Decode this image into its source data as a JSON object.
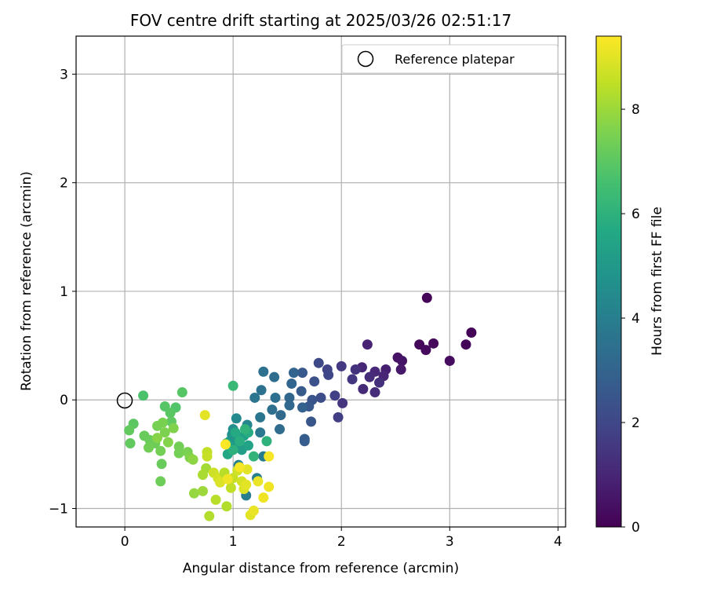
{
  "chart_data": {
    "type": "scatter",
    "title": "FOV centre drift starting at 2025/03/26 02:51:17",
    "xlabel": "Angular distance from reference (arcmin)",
    "ylabel": "Rotation from reference (arcmin)",
    "xlim": [
      -0.45,
      4.07
    ],
    "ylim": [
      -1.17,
      3.35
    ],
    "xticks": [
      0,
      1,
      2,
      3,
      4
    ],
    "yticks": [
      -1,
      0,
      1,
      2,
      3
    ],
    "grid": true,
    "legend": {
      "position": "upper right",
      "entries": [
        "Reference platepar"
      ]
    },
    "reference_point": {
      "x": 0,
      "y": 0,
      "label": "Reference platepar",
      "marker": "open circle"
    },
    "colorbar": {
      "label": "Hours from first FF file",
      "min": 0,
      "max": 9.4,
      "ticks": [
        0,
        2,
        4,
        6,
        8
      ],
      "colormap": "viridis"
    },
    "points": [
      {
        "x": 2.79,
        "y": 0.94,
        "c": 0.1
      },
      {
        "x": 3.2,
        "y": 0.62,
        "c": 0.05
      },
      {
        "x": 3.15,
        "y": 0.51,
        "c": 0.1
      },
      {
        "x": 2.85,
        "y": 0.52,
        "c": 0.2
      },
      {
        "x": 2.72,
        "y": 0.51,
        "c": 0.15
      },
      {
        "x": 2.78,
        "y": 0.46,
        "c": 0.25
      },
      {
        "x": 3.0,
        "y": 0.36,
        "c": 0.3
      },
      {
        "x": 2.52,
        "y": 0.39,
        "c": 0.45
      },
      {
        "x": 2.56,
        "y": 0.36,
        "c": 0.5
      },
      {
        "x": 2.55,
        "y": 0.28,
        "c": 0.6
      },
      {
        "x": 2.24,
        "y": 0.51,
        "c": 0.9
      },
      {
        "x": 2.41,
        "y": 0.28,
        "c": 0.8
      },
      {
        "x": 2.39,
        "y": 0.22,
        "c": 1.0
      },
      {
        "x": 2.31,
        "y": 0.26,
        "c": 1.1
      },
      {
        "x": 2.26,
        "y": 0.21,
        "c": 1.2
      },
      {
        "x": 2.35,
        "y": 0.16,
        "c": 1.3
      },
      {
        "x": 2.31,
        "y": 0.07,
        "c": 1.2
      },
      {
        "x": 2.2,
        "y": 0.1,
        "c": 1.15
      },
      {
        "x": 2.19,
        "y": 0.3,
        "c": 1.0
      },
      {
        "x": 2.13,
        "y": 0.28,
        "c": 1.35
      },
      {
        "x": 2.1,
        "y": 0.19,
        "c": 1.5
      },
      {
        "x": 2.0,
        "y": 0.31,
        "c": 1.6
      },
      {
        "x": 2.01,
        "y": -0.03,
        "c": 1.4
      },
      {
        "x": 1.97,
        "y": -0.16,
        "c": 1.7
      },
      {
        "x": 1.94,
        "y": 0.04,
        "c": 1.8
      },
      {
        "x": 1.87,
        "y": 0.28,
        "c": 1.9
      },
      {
        "x": 1.88,
        "y": 0.23,
        "c": 2.0
      },
      {
        "x": 1.79,
        "y": 0.34,
        "c": 2.1
      },
      {
        "x": 1.81,
        "y": 0.02,
        "c": 2.2
      },
      {
        "x": 1.75,
        "y": 0.17,
        "c": 2.3
      },
      {
        "x": 1.73,
        "y": 0.0,
        "c": 2.4
      },
      {
        "x": 1.72,
        "y": -0.2,
        "c": 2.5
      },
      {
        "x": 1.7,
        "y": -0.06,
        "c": 2.55
      },
      {
        "x": 1.64,
        "y": 0.25,
        "c": 2.6
      },
      {
        "x": 1.63,
        "y": 0.08,
        "c": 2.7
      },
      {
        "x": 1.66,
        "y": -0.36,
        "c": 2.8
      },
      {
        "x": 1.66,
        "y": -0.38,
        "c": 2.75
      },
      {
        "x": 1.64,
        "y": -0.07,
        "c": 2.9
      },
      {
        "x": 1.56,
        "y": 0.25,
        "c": 3.0
      },
      {
        "x": 1.54,
        "y": 0.15,
        "c": 3.05
      },
      {
        "x": 1.52,
        "y": 0.02,
        "c": 3.1
      },
      {
        "x": 1.52,
        "y": -0.05,
        "c": 3.15
      },
      {
        "x": 1.44,
        "y": -0.14,
        "c": 3.2
      },
      {
        "x": 1.43,
        "y": -0.27,
        "c": 3.3
      },
      {
        "x": 1.38,
        "y": 0.21,
        "c": 3.35
      },
      {
        "x": 1.39,
        "y": 0.02,
        "c": 3.4
      },
      {
        "x": 1.36,
        "y": -0.09,
        "c": 3.45
      },
      {
        "x": 1.28,
        "y": 0.26,
        "c": 3.5
      },
      {
        "x": 1.26,
        "y": 0.09,
        "c": 3.55
      },
      {
        "x": 1.25,
        "y": -0.16,
        "c": 3.65
      },
      {
        "x": 1.2,
        "y": 0.02,
        "c": 3.7
      },
      {
        "x": 1.25,
        "y": -0.3,
        "c": 3.8
      },
      {
        "x": 1.28,
        "y": -0.52,
        "c": 3.9
      },
      {
        "x": 1.22,
        "y": -0.72,
        "c": 3.95
      },
      {
        "x": 1.12,
        "y": -0.88,
        "c": 4.0
      },
      {
        "x": 1.05,
        "y": -0.6,
        "c": 4.1
      },
      {
        "x": 1.13,
        "y": -0.23,
        "c": 4.3
      },
      {
        "x": 1.03,
        "y": -0.17,
        "c": 4.4
      },
      {
        "x": 1.0,
        "y": -0.27,
        "c": 4.55
      },
      {
        "x": 0.99,
        "y": -0.32,
        "c": 4.7
      },
      {
        "x": 0.97,
        "y": -0.38,
        "c": 4.85
      },
      {
        "x": 1.04,
        "y": -0.36,
        "c": 5.0
      },
      {
        "x": 1.02,
        "y": -0.43,
        "c": 5.1
      },
      {
        "x": 1.08,
        "y": -0.46,
        "c": 5.2
      },
      {
        "x": 1.1,
        "y": -0.33,
        "c": 5.3
      },
      {
        "x": 1.14,
        "y": -0.42,
        "c": 5.4
      },
      {
        "x": 0.94,
        "y": -0.4,
        "c": 5.5
      },
      {
        "x": 0.95,
        "y": -0.5,
        "c": 5.6
      },
      {
        "x": 1.02,
        "y": -0.3,
        "c": 5.7
      },
      {
        "x": 1.14,
        "y": -0.3,
        "c": 5.75
      },
      {
        "x": 1.06,
        "y": -0.38,
        "c": 5.85
      },
      {
        "x": 1.0,
        "y": -0.46,
        "c": 5.95
      },
      {
        "x": 1.11,
        "y": -0.27,
        "c": 6.05
      },
      {
        "x": 1.19,
        "y": -0.52,
        "c": 6.1
      },
      {
        "x": 1.31,
        "y": -0.38,
        "c": 6.0
      },
      {
        "x": 1.0,
        "y": 0.13,
        "c": 6.3
      },
      {
        "x": 0.53,
        "y": 0.07,
        "c": 6.9
      },
      {
        "x": 0.17,
        "y": 0.04,
        "c": 6.7
      },
      {
        "x": 0.37,
        "y": -0.06,
        "c": 6.9
      },
      {
        "x": 0.47,
        "y": -0.07,
        "c": 6.8
      },
      {
        "x": 0.42,
        "y": -0.12,
        "c": 6.95
      },
      {
        "x": 0.43,
        "y": -0.2,
        "c": 7.05
      },
      {
        "x": 0.08,
        "y": -0.22,
        "c": 7.0
      },
      {
        "x": 0.04,
        "y": -0.28,
        "c": 7.1
      },
      {
        "x": 0.18,
        "y": -0.33,
        "c": 7.2
      },
      {
        "x": 0.23,
        "y": -0.37,
        "c": 7.25
      },
      {
        "x": 0.28,
        "y": -0.4,
        "c": 7.3
      },
      {
        "x": 0.22,
        "y": -0.44,
        "c": 7.35
      },
      {
        "x": 0.33,
        "y": -0.47,
        "c": 7.4
      },
      {
        "x": 0.3,
        "y": -0.24,
        "c": 7.45
      },
      {
        "x": 0.35,
        "y": -0.21,
        "c": 7.5
      },
      {
        "x": 0.37,
        "y": -0.3,
        "c": 7.55
      },
      {
        "x": 0.45,
        "y": -0.26,
        "c": 7.6
      },
      {
        "x": 0.4,
        "y": -0.39,
        "c": 7.65
      },
      {
        "x": 0.3,
        "y": -0.35,
        "c": 7.7
      },
      {
        "x": 0.05,
        "y": -0.4,
        "c": 7.1
      },
      {
        "x": 0.34,
        "y": -0.59,
        "c": 7.2
      },
      {
        "x": 0.33,
        "y": -0.75,
        "c": 7.3
      },
      {
        "x": 0.5,
        "y": -0.43,
        "c": 7.35
      },
      {
        "x": 0.5,
        "y": -0.49,
        "c": 7.4
      },
      {
        "x": 0.58,
        "y": -0.48,
        "c": 7.5
      },
      {
        "x": 0.6,
        "y": -0.53,
        "c": 7.6
      },
      {
        "x": 0.63,
        "y": -0.55,
        "c": 7.8
      },
      {
        "x": 0.64,
        "y": -0.86,
        "c": 7.9
      },
      {
        "x": 0.72,
        "y": -0.84,
        "c": 8.0
      },
      {
        "x": 0.75,
        "y": -0.63,
        "c": 8.1
      },
      {
        "x": 0.72,
        "y": -0.69,
        "c": 8.2
      },
      {
        "x": 0.78,
        "y": -1.07,
        "c": 8.3
      },
      {
        "x": 0.84,
        "y": -0.92,
        "c": 8.4
      },
      {
        "x": 0.76,
        "y": -0.48,
        "c": 8.5
      },
      {
        "x": 0.76,
        "y": -0.52,
        "c": 8.6
      },
      {
        "x": 0.82,
        "y": -0.67,
        "c": 8.7
      },
      {
        "x": 0.86,
        "y": -0.72,
        "c": 8.8
      },
      {
        "x": 0.88,
        "y": -0.76,
        "c": 8.9
      },
      {
        "x": 0.92,
        "y": -0.67,
        "c": 8.4
      },
      {
        "x": 0.94,
        "y": -0.98,
        "c": 8.3
      },
      {
        "x": 0.98,
        "y": -0.81,
        "c": 8.5
      },
      {
        "x": 1.0,
        "y": -0.72,
        "c": 8.6
      },
      {
        "x": 1.04,
        "y": -0.65,
        "c": 8.7
      },
      {
        "x": 1.08,
        "y": -0.75,
        "c": 8.8
      },
      {
        "x": 1.1,
        "y": -0.82,
        "c": 8.9
      },
      {
        "x": 1.13,
        "y": -0.64,
        "c": 9.0
      },
      {
        "x": 1.16,
        "y": -1.06,
        "c": 9.0
      },
      {
        "x": 1.19,
        "y": -1.02,
        "c": 9.1
      },
      {
        "x": 1.23,
        "y": -0.75,
        "c": 9.1
      },
      {
        "x": 1.28,
        "y": -0.9,
        "c": 9.2
      },
      {
        "x": 1.33,
        "y": -0.8,
        "c": 9.2
      },
      {
        "x": 1.33,
        "y": -0.52,
        "c": 9.3
      },
      {
        "x": 0.74,
        "y": -0.14,
        "c": 9.0
      },
      {
        "x": 0.93,
        "y": -0.41,
        "c": 9.35
      },
      {
        "x": 1.06,
        "y": -0.62,
        "c": 9.3
      },
      {
        "x": 1.12,
        "y": -0.78,
        "c": 9.0
      },
      {
        "x": 0.95,
        "y": -0.73,
        "c": 9.2
      }
    ]
  }
}
